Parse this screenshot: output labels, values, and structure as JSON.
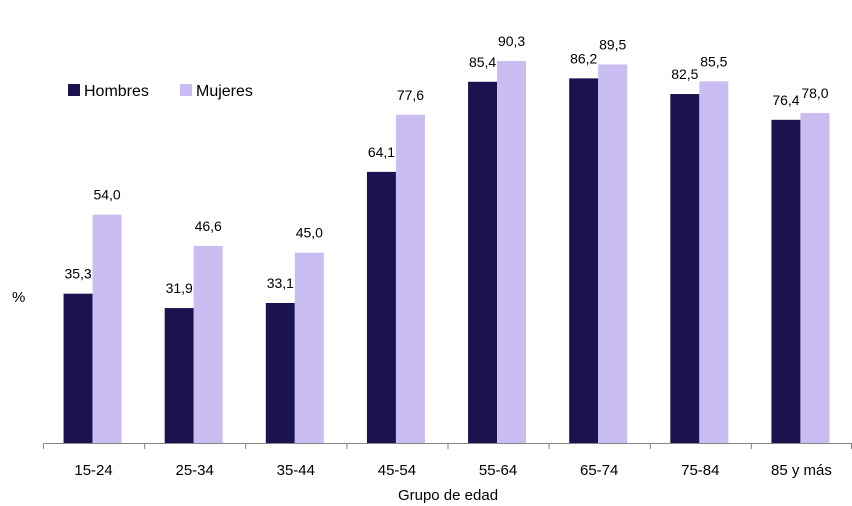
{
  "chart_data": {
    "type": "bar",
    "xlabel": "Grupo de edad",
    "ylabel": "%",
    "ylim": [
      0,
      100
    ],
    "grid": false,
    "legend_position": "top-left",
    "categories": [
      "15-24",
      "25-34",
      "35-44",
      "45-54",
      "55-64",
      "65-74",
      "75-84",
      "85 y más"
    ],
    "series": [
      {
        "name": "Hombres",
        "color": "#1b1350",
        "values": [
          35.3,
          31.9,
          33.1,
          64.1,
          85.4,
          86.2,
          82.5,
          76.4
        ],
        "labels": [
          "35,3",
          "31,9",
          "33,1",
          "64,1",
          "85,4",
          "86,2",
          "82,5",
          "76,4"
        ]
      },
      {
        "name": "Mujeres",
        "color": "#c9bdf1",
        "values": [
          54.0,
          46.6,
          45.0,
          77.6,
          90.3,
          89.5,
          85.5,
          78.0
        ],
        "labels": [
          "54,0",
          "46,6",
          "45,0",
          "77,6",
          "90,3",
          "89,5",
          "85,5",
          "78,0"
        ]
      }
    ]
  }
}
